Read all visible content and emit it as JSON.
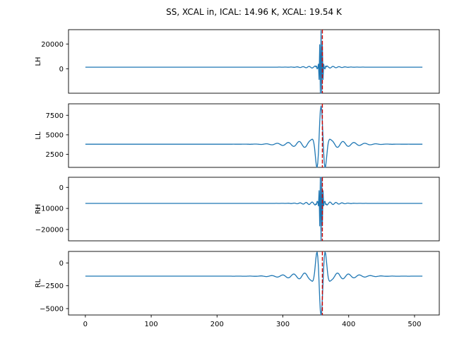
{
  "figure": {
    "title": "SS, XCAL in, ICAL: 14.96 K, XCAL: 19.54 K",
    "background": "#ffffff"
  },
  "chart_data": {
    "type": "line",
    "title": "SS, XCAL in, ICAL: 14.96 K, XCAL: 19.54 K",
    "grid": false,
    "legend": false,
    "line_color": "#1f77b4",
    "marker_line": {
      "x": 360,
      "color": "#cc0000",
      "style": "dashed"
    },
    "x": {
      "min": 0,
      "max": 512,
      "xlim": [
        -25.6,
        537.6
      ],
      "ticks": [
        {
          "value": 0,
          "label": "0"
        },
        {
          "value": 100,
          "label": "100"
        },
        {
          "value": 200,
          "label": "200"
        },
        {
          "value": 300,
          "label": "300"
        },
        {
          "value": 400,
          "label": "400"
        },
        {
          "value": 500,
          "label": "500"
        }
      ]
    },
    "subplots": [
      {
        "ylabel": "LH",
        "ylim": [
          -19800,
          31600
        ],
        "yticks": [
          {
            "value": 20000,
            "label": "20000"
          },
          {
            "value": 0,
            "label": "0"
          }
        ],
        "model": {
          "center": 358,
          "baseline": 1300,
          "amplitude": 28500,
          "carrier_freq": 0.45,
          "envelope_width": 4,
          "ring_amplitude": 900,
          "ring_freq": 0.11,
          "ring_width": 30
        }
      },
      {
        "ylabel": "LL",
        "ylim": [
          830,
          8970
        ],
        "yticks": [
          {
            "value": 7500,
            "label": "7500"
          },
          {
            "value": 5000,
            "label": "5000"
          },
          {
            "value": 2500,
            "label": "2500"
          }
        ],
        "model": {
          "center": 358,
          "baseline": 3800,
          "amplitude": 4400,
          "carrier_freq": 0.075,
          "envelope_width": 9,
          "ring_amplitude": 500,
          "ring_freq": 0.06,
          "ring_width": 55
        }
      },
      {
        "ylabel": "RH",
        "ylim": [
          -25400,
          4800
        ],
        "yticks": [
          {
            "value": 0,
            "label": "0"
          },
          {
            "value": -10000,
            "label": "−10000"
          },
          {
            "value": -20000,
            "label": "−20000"
          }
        ],
        "model": {
          "center": 358,
          "baseline": -7600,
          "amplitude": -16800,
          "carrier_freq": 0.45,
          "envelope_width": 4,
          "ring_amplitude": -800,
          "ring_freq": 0.11,
          "ring_width": 30
        }
      },
      {
        "ylabel": "RL",
        "ylim": [
          -5700,
          1260
        ],
        "yticks": [
          {
            "value": 0,
            "label": "0"
          },
          {
            "value": -2500,
            "label": "−2500"
          },
          {
            "value": -5000,
            "label": "−5000"
          }
        ],
        "model": {
          "center": 358,
          "baseline": -1450,
          "amplitude": -3900,
          "carrier_freq": 0.075,
          "envelope_width": 9,
          "ring_amplitude": -420,
          "ring_freq": 0.06,
          "ring_width": 55
        }
      }
    ]
  }
}
